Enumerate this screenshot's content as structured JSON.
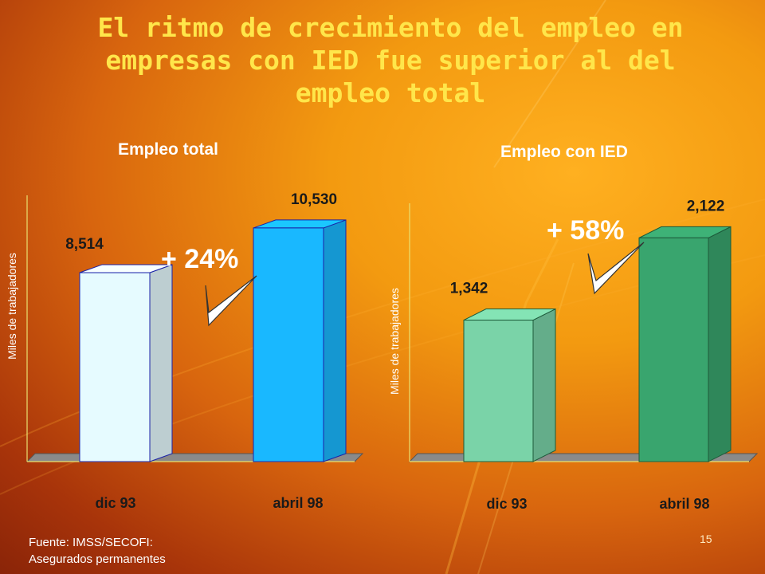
{
  "title": "El ritmo de crecimiento del empleo en empresas con IED fue superior al del empleo total",
  "title_lines": [
    "El ritmo de crecimiento del empleo en",
    "empresas con IED fue superior al del",
    "empleo total"
  ],
  "colors": {
    "title": "#ffe64a",
    "text": "#ffffff",
    "label": "#1a1a1a",
    "total_dic93": "#e6fbff",
    "total_abril98": "#19b8ff",
    "ied_dic93": "#7ad3a8",
    "ied_abril98": "#39a56e"
  },
  "chart_data": [
    {
      "type": "bar",
      "title": "Empleo total",
      "ylabel": "Miles de trabajadores",
      "categories": [
        "dic 93",
        "abril 98"
      ],
      "values": [
        8514,
        10530
      ],
      "value_labels": [
        "8,514",
        "10,530"
      ],
      "growth_label": "+ 24%",
      "ylim": [
        0,
        12000
      ],
      "grid": false,
      "legend": "none"
    },
    {
      "type": "bar",
      "title": "Empleo con IED",
      "ylabel": "Miles de trabajadores",
      "categories": [
        "dic 93",
        "abril 98"
      ],
      "values": [
        1342,
        2122
      ],
      "value_labels": [
        "1,342",
        "2,122"
      ],
      "growth_label": "+ 58%",
      "ylim": [
        0,
        2450
      ],
      "grid": false,
      "legend": "none"
    }
  ],
  "source_lines": [
    "Fuente: IMSS/SECOFI:",
    "Asegurados permanentes"
  ],
  "page_number": "15"
}
